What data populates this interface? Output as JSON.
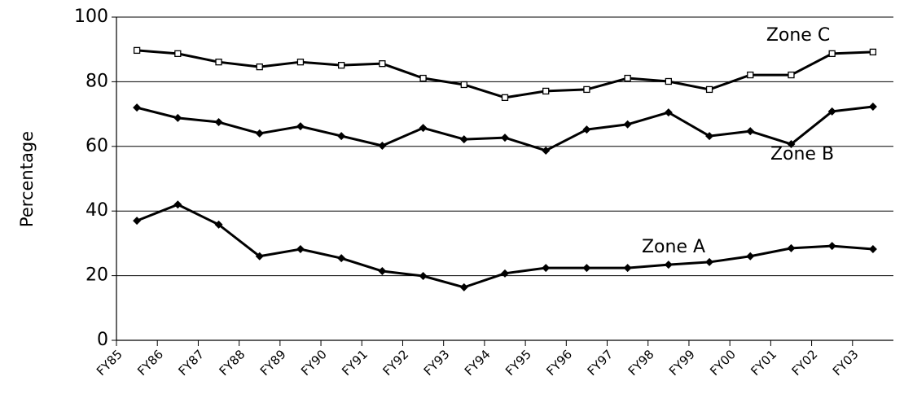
{
  "chart_data": {
    "type": "line",
    "y_label": "Percentage",
    "categories": [
      "FY85",
      "FY86",
      "FY87",
      "FY88",
      "FY89",
      "FY90",
      "FY91",
      "FY92",
      "FY93",
      "FY94",
      "FY95",
      "FY96",
      "FY97",
      "FY98",
      "FY99",
      "FY00",
      "FY01",
      "FY02",
      "FY03"
    ],
    "series": [
      {
        "name": "Zone C",
        "color": "#000000",
        "marker": "square",
        "values": [
          89.7,
          88.7,
          86.1,
          84.6,
          86.1,
          85.1,
          85.6,
          81.1,
          79.1,
          75.1,
          77.1,
          77.6,
          81.1,
          80.1,
          77.6,
          82.1,
          82.1,
          88.7,
          89.2
        ]
      },
      {
        "name": "Zone B",
        "color": "#000000",
        "marker": "diamond",
        "values": [
          72,
          68.8,
          67.5,
          64,
          66.2,
          63.2,
          60.2,
          65.7,
          62.2,
          62.7,
          58.7,
          65.2,
          66.8,
          70.5,
          63.2,
          64.7,
          60.7,
          70.8,
          72.3
        ]
      },
      {
        "name": "Zone A",
        "color": "#000000",
        "marker": "diamond",
        "values": [
          37,
          42,
          35.8,
          26,
          28.2,
          25.4,
          21.4,
          19.9,
          16.4,
          20.7,
          22.4,
          22.4,
          22.4,
          23.4,
          24.2,
          26,
          28.5,
          29.2,
          28.2
        ]
      }
    ],
    "ylim": [
      0,
      100
    ],
    "yticks": [
      0,
      20,
      40,
      60,
      80,
      100
    ],
    "grid": true
  }
}
